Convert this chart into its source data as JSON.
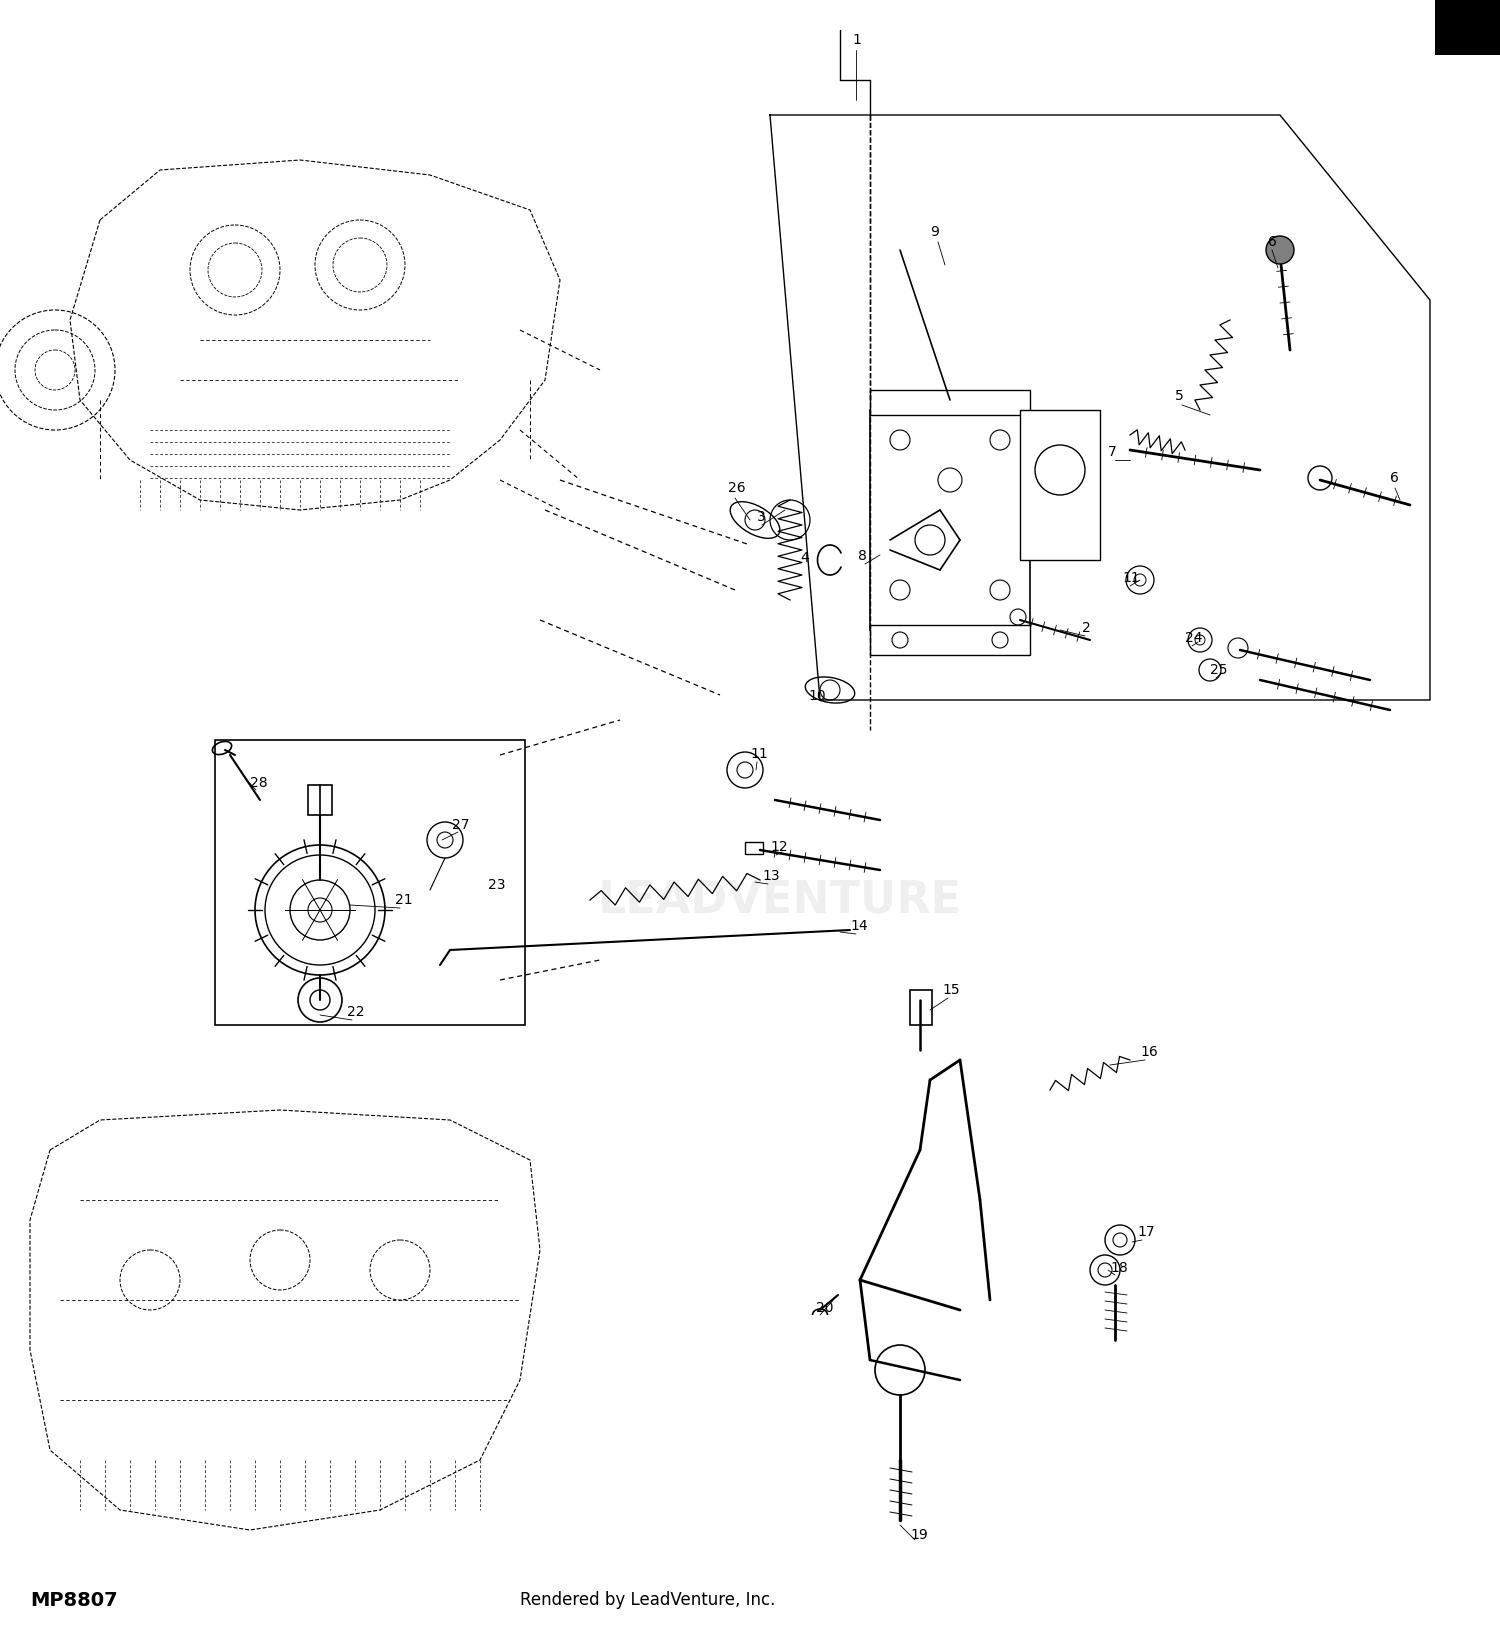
{
  "bg_color": "#ffffff",
  "title_bottom_left": "MP8807",
  "title_bottom_center": "Rendered by LeadVenture, Inc.",
  "figsize": [
    15.0,
    16.27
  ],
  "dpi": 100
}
